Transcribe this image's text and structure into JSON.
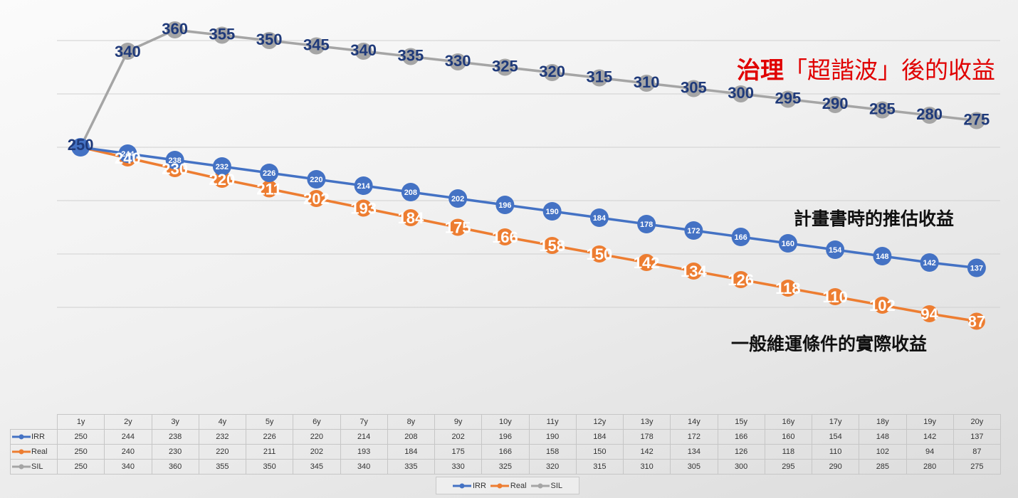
{
  "chart_data": {
    "type": "line",
    "categories": [
      "1y",
      "2y",
      "3y",
      "4y",
      "5y",
      "6y",
      "7y",
      "8y",
      "9y",
      "10y",
      "11y",
      "12y",
      "13y",
      "14y",
      "15y",
      "16y",
      "17y",
      "18y",
      "19y",
      "20y"
    ],
    "series": [
      {
        "name": "IRR",
        "color": "#4472c4",
        "values": [
          250,
          244,
          238,
          232,
          226,
          220,
          214,
          208,
          202,
          196,
          190,
          184,
          178,
          172,
          166,
          160,
          154,
          148,
          142,
          137
        ]
      },
      {
        "name": "Real",
        "color": "#ed7d31",
        "values": [
          250,
          240,
          230,
          220,
          211,
          202,
          193,
          184,
          175,
          166,
          158,
          150,
          142,
          134,
          126,
          118,
          110,
          102,
          94,
          87
        ]
      },
      {
        "name": "SIL",
        "color": "#a5a5a5",
        "values": [
          250,
          340,
          360,
          355,
          350,
          345,
          340,
          335,
          330,
          325,
          320,
          315,
          310,
          305,
          300,
          295,
          290,
          285,
          280,
          275
        ]
      }
    ],
    "grid": true,
    "legend_position": "bottom",
    "data_table": true
  },
  "annotations": {
    "sil_bold": "治理",
    "sil_rest": "「超諧波」後的收益",
    "irr": "計畫書時的推估收益",
    "real": "一般維運條件的實際收益"
  },
  "colors": {
    "sil_label": "#1f3a7a",
    "annotation_red": "#e00000",
    "grid": "#d0d0d0"
  }
}
